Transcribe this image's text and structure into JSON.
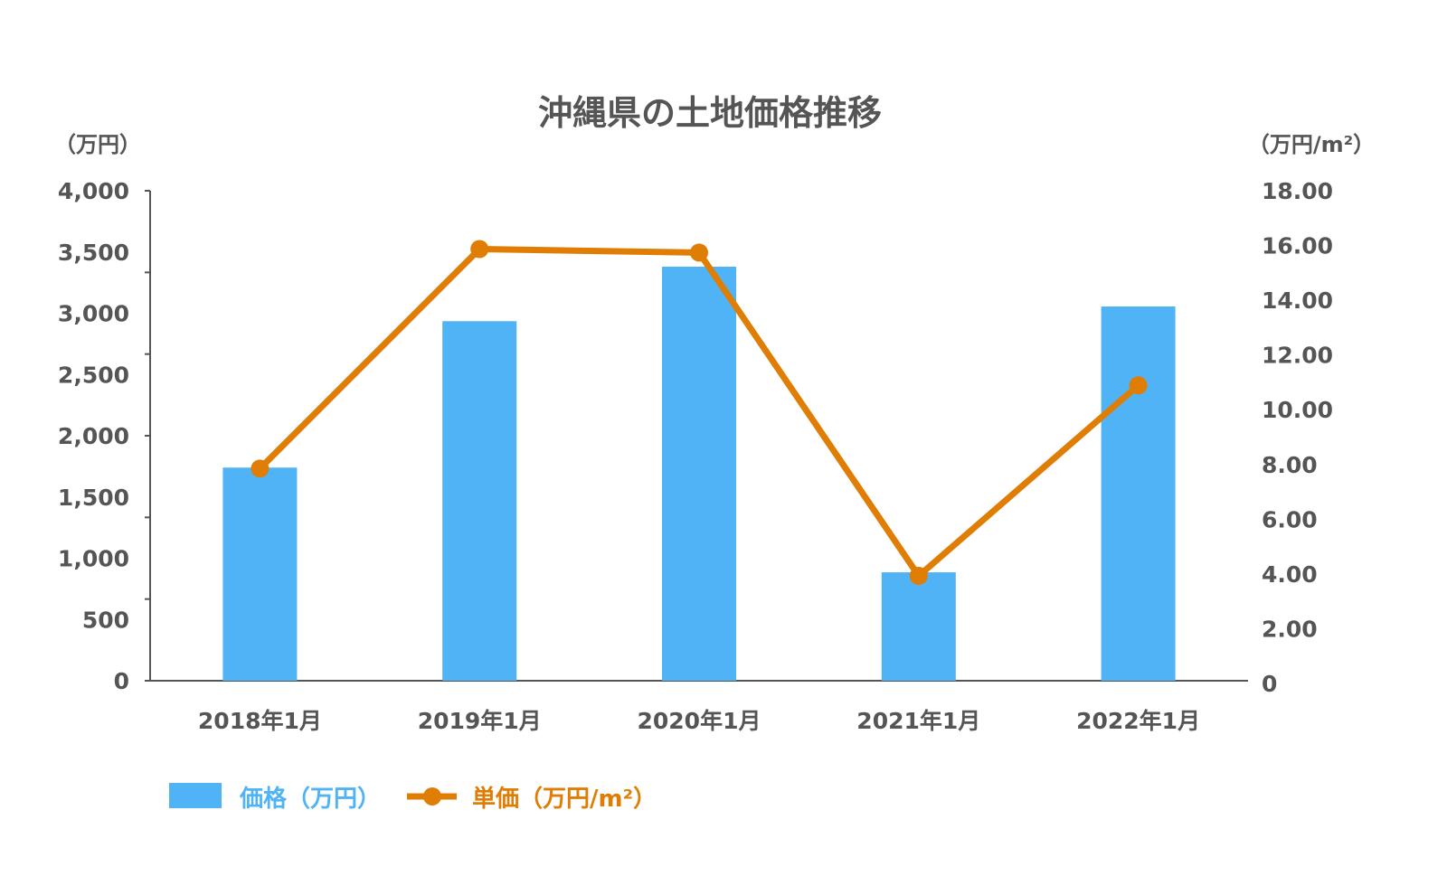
{
  "chart_data": {
    "type": "bar+line",
    "title": "沖縄県の土地価格推移",
    "categories": [
      "2018年1月",
      "2019年1月",
      "2020年1月",
      "2021年1月",
      "2022年1月"
    ],
    "series": [
      {
        "name": "価格（万円）",
        "type": "bar",
        "axis": "left",
        "color": "#4FB3F5",
        "values": [
          1740,
          2935,
          3380,
          885,
          3055
        ]
      },
      {
        "name": "単価（万円/m²）",
        "type": "line",
        "axis": "right",
        "color": "#E07D05",
        "values": [
          7.85,
          15.87,
          15.74,
          3.93,
          10.89
        ]
      }
    ],
    "left_axis": {
      "label": "（万円）",
      "ylim": [
        0,
        4000
      ],
      "ticks": [
        "0",
        "500",
        "1,000",
        "1,500",
        "2,000",
        "2,500",
        "3,000",
        "3,500",
        "4,000"
      ]
    },
    "right_axis": {
      "label": "（万円/m²）",
      "ylim": [
        0,
        18
      ],
      "ticks": [
        "0",
        "2.00",
        "4.00",
        "6.00",
        "8.00",
        "10.00",
        "12.00",
        "14.00",
        "16.00",
        "18.00"
      ]
    },
    "legend_position": "bottom-left",
    "grid": false
  }
}
